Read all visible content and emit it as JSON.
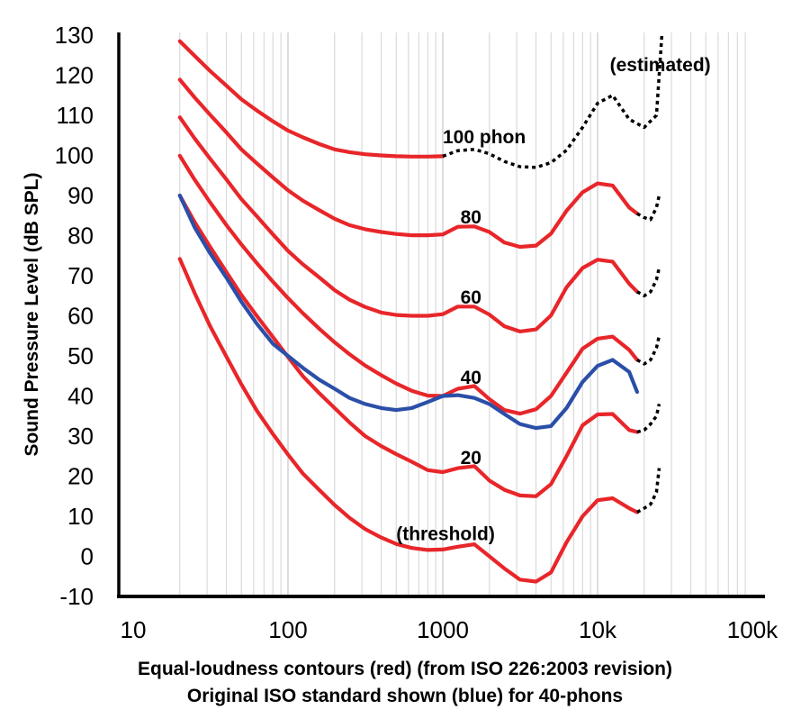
{
  "chart_data": {
    "type": "line",
    "ylabel": "Sound Pressure Level (dB SPL)",
    "caption_line1": "Equal-loudness contours (red) (from ISO 226:2003 revision)",
    "caption_line2": "Original ISO standard shown (blue) for 40-phons",
    "x_scale": "log",
    "xlim": [
      10,
      100000
    ],
    "ylim": [
      -10,
      130
    ],
    "x_tick_labels": [
      "10",
      "100",
      "1000",
      "10k",
      "100k"
    ],
    "x_tick_values": [
      10,
      100,
      1000,
      10000,
      100000
    ],
    "y_ticks": [
      -10,
      0,
      10,
      20,
      30,
      40,
      50,
      60,
      70,
      80,
      90,
      100,
      110,
      120,
      130
    ],
    "grid": "vertical minor log gridlines",
    "colors": {
      "iso226": "#e8262a",
      "original": "#2b4fa8",
      "estimated": "#000000"
    },
    "annotations": [
      {
        "text": "100 phon",
        "x": 1000,
        "y": 103
      },
      {
        "text": "80",
        "x": 1300,
        "y": 83
      },
      {
        "text": "60",
        "x": 1300,
        "y": 63
      },
      {
        "text": "40",
        "x": 1300,
        "y": 43
      },
      {
        "text": "20",
        "x": 1300,
        "y": 23
      },
      {
        "text": "(threshold)",
        "x": 500,
        "y": 4
      },
      {
        "text": "(estimated)",
        "x": 12000,
        "y": 121
      }
    ],
    "series": [
      {
        "name": "100 phon",
        "color": "#e8262a",
        "x": [
          20,
          25,
          31.5,
          40,
          50,
          63,
          80,
          100,
          125,
          160,
          200,
          250,
          315,
          400,
          500,
          630,
          800,
          1000
        ],
        "y": [
          128.5,
          124.8,
          121,
          117.4,
          114,
          111.2,
          108.5,
          106.2,
          104.5,
          102.8,
          101.5,
          100.8,
          100.3,
          100,
          99.8,
          99.7,
          99.7,
          99.8
        ]
      },
      {
        "name": "100 phon (estimated)",
        "color": "#000000",
        "dashed": true,
        "x": [
          1000,
          1250,
          1600,
          2000,
          2500,
          3150,
          4000,
          5000,
          6300,
          8000,
          10000,
          12500,
          16000,
          20000,
          24000,
          26000
        ],
        "y": [
          99.8,
          101.2,
          101.5,
          100.4,
          98.5,
          97.2,
          97,
          98.2,
          101.3,
          107,
          113,
          115,
          109,
          107,
          110,
          130
        ]
      },
      {
        "name": "80 phon",
        "color": "#e8262a",
        "x": [
          20,
          25,
          31.5,
          40,
          50,
          63,
          80,
          100,
          125,
          160,
          200,
          250,
          315,
          400,
          500,
          630,
          800,
          1000,
          1250,
          1600,
          2000,
          2500,
          3150,
          4000,
          5000,
          6300,
          8000,
          10000,
          12500,
          16000,
          18000
        ],
        "y": [
          118.9,
          114.4,
          110.1,
          105.7,
          101.5,
          98,
          94.5,
          91.3,
          88.7,
          86.3,
          84.2,
          82.6,
          81.6,
          80.9,
          80.4,
          80.1,
          80.1,
          80.3,
          82.2,
          82.3,
          80.9,
          78.3,
          77.2,
          77.5,
          80.5,
          86.2,
          90.8,
          93,
          92.5,
          87,
          85.5
        ]
      },
      {
        "name": "80 phon (estimated)",
        "color": "#000000",
        "dashed": true,
        "x": [
          18000,
          20000,
          22000,
          24000,
          25000
        ],
        "y": [
          85.5,
          84.5,
          84,
          87,
          90
        ]
      },
      {
        "name": "60 phon",
        "color": "#e8262a",
        "x": [
          20,
          25,
          31.5,
          40,
          50,
          63,
          80,
          100,
          125,
          160,
          200,
          250,
          315,
          400,
          500,
          630,
          800,
          1000,
          1250,
          1600,
          2000,
          2500,
          3150,
          4000,
          5000,
          6300,
          8000,
          10000,
          12500,
          16000,
          18000
        ],
        "y": [
          109.5,
          104.2,
          99.1,
          94,
          89.1,
          84.8,
          80.3,
          76.2,
          72.8,
          69.5,
          66.4,
          64,
          62.2,
          60.8,
          60.2,
          60,
          60,
          60.4,
          62.3,
          62.3,
          60.3,
          57.4,
          56.1,
          56.6,
          60.1,
          67.1,
          71.9,
          74,
          73.5,
          68,
          66
        ]
      },
      {
        "name": "60 phon (estimated)",
        "color": "#000000",
        "dashed": true,
        "x": [
          18000,
          20000,
          22000,
          24000,
          25000
        ],
        "y": [
          66,
          65,
          66,
          69,
          72
        ]
      },
      {
        "name": "40 phon",
        "color": "#e8262a",
        "x": [
          20,
          25,
          31.5,
          40,
          50,
          63,
          80,
          100,
          125,
          160,
          200,
          250,
          315,
          400,
          500,
          630,
          800,
          1000,
          1250,
          1600,
          2000,
          2500,
          3150,
          4000,
          5000,
          6300,
          8000,
          10000,
          12500,
          16000,
          18000
        ],
        "y": [
          99.9,
          93.9,
          88.2,
          82.6,
          77.8,
          73.1,
          68.5,
          64.4,
          60.6,
          56.7,
          53.4,
          50.4,
          47.6,
          45.2,
          43.1,
          41.3,
          40.1,
          40,
          41.8,
          42.5,
          39.2,
          36.5,
          35.6,
          36.7,
          40,
          45.8,
          51.8,
          54.3,
          54.8,
          51.5,
          49
        ]
      },
      {
        "name": "40 phon (estimated)",
        "color": "#000000",
        "dashed": true,
        "x": [
          18000,
          20000,
          22000,
          24000,
          25000
        ],
        "y": [
          49,
          48,
          49,
          52,
          55
        ]
      },
      {
        "name": "20 phon",
        "color": "#e8262a",
        "x": [
          20,
          25,
          31.5,
          40,
          50,
          63,
          80,
          100,
          125,
          160,
          200,
          250,
          315,
          400,
          500,
          630,
          800,
          1000,
          1250,
          1600,
          2000,
          2500,
          3150,
          4000,
          5000,
          6300,
          8000,
          10000,
          12500,
          16000,
          18000
        ],
        "y": [
          90,
          83.3,
          77.1,
          70.9,
          65.2,
          59.9,
          54.7,
          49.7,
          44.9,
          40.6,
          37,
          33.4,
          30,
          27.5,
          25.5,
          23.6,
          21.5,
          21,
          22,
          22.5,
          18.9,
          16.6,
          15.2,
          15,
          18,
          25,
          32.7,
          35.4,
          35.5,
          31.5,
          31
        ]
      },
      {
        "name": "20 phon (estimated)",
        "color": "#000000",
        "dashed": true,
        "x": [
          18000,
          20000,
          22000,
          24000,
          25000
        ],
        "y": [
          31,
          31.5,
          33,
          35,
          38
        ]
      },
      {
        "name": "threshold",
        "color": "#e8262a",
        "x": [
          20,
          25,
          31.5,
          40,
          50,
          63,
          80,
          100,
          125,
          160,
          200,
          250,
          315,
          400,
          500,
          630,
          800,
          1000,
          1250,
          1600,
          2000,
          2500,
          3150,
          4000,
          5000,
          6300,
          8000,
          10000,
          12500,
          16000,
          18000
        ],
        "y": [
          74.2,
          65.6,
          57.3,
          49.8,
          42.9,
          36.3,
          30.5,
          25.4,
          20.6,
          16.5,
          12.8,
          9.6,
          6.8,
          4.7,
          3.1,
          2.1,
          1.6,
          1.7,
          2.4,
          3,
          0,
          -3,
          -5.8,
          -6.3,
          -4,
          3.5,
          10,
          14,
          14.5,
          12,
          11
        ]
      },
      {
        "name": "threshold (estimated)",
        "color": "#000000",
        "dashed": true,
        "x": [
          18000,
          20000,
          22000,
          24000,
          25000
        ],
        "y": [
          11,
          12,
          13,
          16,
          22
        ]
      },
      {
        "name": "Original ISO 40 phon",
        "color": "#2b4fa8",
        "x": [
          20,
          25,
          31.5,
          40,
          50,
          63,
          80,
          100,
          125,
          160,
          200,
          250,
          315,
          400,
          500,
          630,
          800,
          1000,
          1250,
          1600,
          2000,
          2500,
          3150,
          4000,
          5000,
          6300,
          8000,
          10000,
          12500,
          16000,
          18000
        ],
        "y": [
          90,
          82,
          75.5,
          69.5,
          63.5,
          58,
          53,
          50,
          47,
          44,
          41.8,
          39.5,
          38,
          37,
          36.5,
          37,
          38.5,
          40,
          40.2,
          39.5,
          38,
          35.5,
          33,
          32,
          32.5,
          37,
          43.5,
          47.5,
          49,
          46,
          41
        ]
      }
    ]
  }
}
